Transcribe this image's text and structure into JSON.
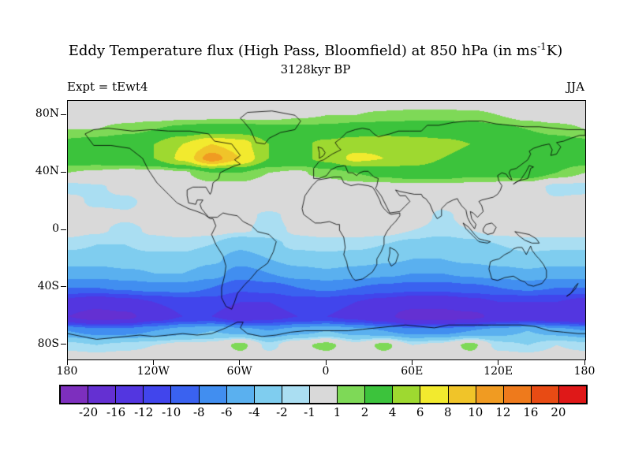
{
  "header": {
    "title_pre": "Eddy Temperature flux (High Pass, Bloomfield) at 850 hPa (in ms",
    "title_sup": "-1",
    "title_post": "K)",
    "subtitle": "3128kyr BP",
    "left_label": "Expt = tEwt4",
    "right_label": "JJA"
  },
  "axes": {
    "lat_ticks": [
      {
        "value": 80,
        "label": "80N"
      },
      {
        "value": 40,
        "label": "40N"
      },
      {
        "value": 0,
        "label": "0"
      },
      {
        "value": -40,
        "label": "40S"
      },
      {
        "value": -80,
        "label": "80S"
      }
    ],
    "lon_ticks": [
      {
        "value": -180,
        "label": "180"
      },
      {
        "value": -120,
        "label": "120W"
      },
      {
        "value": -60,
        "label": "60W"
      },
      {
        "value": 0,
        "label": "0"
      },
      {
        "value": 60,
        "label": "60E"
      },
      {
        "value": 120,
        "label": "120E"
      },
      {
        "value": 180,
        "label": "180"
      }
    ]
  },
  "chart_data": {
    "type": "heatmap",
    "subtype": "filled-contour-world-map",
    "projection": "equirectangular",
    "title": "Eddy Temperature flux (High Pass, Bloomfield) at 850 hPa (in ms-1K)",
    "subtitle": "3128kyr BP",
    "experiment": "tEwt4",
    "season": "JJA",
    "units": "ms-1 K",
    "lat_range": [
      -90,
      90
    ],
    "lon_range": [
      -180,
      180
    ],
    "levels": [
      -20,
      -16,
      -12,
      -10,
      -8,
      -6,
      -4,
      -2,
      -1,
      1,
      2,
      4,
      6,
      8,
      10,
      12,
      16,
      20
    ],
    "colors": [
      "#7d2fbe",
      "#6430d2",
      "#5336e0",
      "#4145ec",
      "#3a62f0",
      "#418ef0",
      "#5ab0ef",
      "#7fcdef",
      "#aadef2",
      "#d9d9d9",
      "#7ed957",
      "#3cc33c",
      "#9ed930",
      "#f2ea2e",
      "#f0c429",
      "#f09b22",
      "#ee7a1c",
      "#e84b14",
      "#df1818"
    ],
    "lats": [
      90,
      80,
      70,
      60,
      50,
      40,
      30,
      20,
      10,
      0,
      -10,
      -20,
      -30,
      -40,
      -50,
      -60,
      -70,
      -80,
      -90
    ],
    "lons": [
      -180,
      -160,
      -140,
      -120,
      -100,
      -80,
      -60,
      -40,
      -20,
      0,
      20,
      40,
      60,
      80,
      100,
      120,
      140,
      160,
      180
    ],
    "values": [
      [
        0,
        0,
        0,
        0,
        0,
        0,
        0,
        0,
        0,
        0,
        0,
        0,
        0,
        0,
        0,
        0,
        0,
        0,
        0
      ],
      [
        0.3,
        0.3,
        0.3,
        0.4,
        0.5,
        0.5,
        0.5,
        0.5,
        0.8,
        1,
        1,
        1.3,
        1.5,
        1.5,
        1.4,
        1,
        0.5,
        0.3,
        0.3
      ],
      [
        1,
        1,
        1.5,
        2,
        2.5,
        3,
        3,
        2.5,
        2.5,
        2.5,
        3,
        3,
        3,
        3,
        3,
        2.5,
        2,
        1.5,
        1
      ],
      [
        2.5,
        3,
        3.5,
        4,
        6,
        8,
        7,
        4,
        3.5,
        4.5,
        5,
        5.5,
        5,
        4.5,
        4,
        4,
        3.5,
        3,
        2.5
      ],
      [
        3,
        3,
        3.5,
        4,
        6.5,
        11,
        8,
        4,
        3.5,
        4.5,
        6.5,
        6,
        5,
        4,
        3.5,
        3.5,
        3,
        3,
        3
      ],
      [
        1,
        0.8,
        0.5,
        0.5,
        0.8,
        2,
        2,
        1,
        0.8,
        1.5,
        2,
        2.5,
        3,
        3,
        2.5,
        2.5,
        3,
        2,
        1
      ],
      [
        -1.5,
        -1.2,
        -0.5,
        0,
        0,
        0.5,
        0.5,
        0,
        0,
        0,
        0.5,
        0.5,
        0.5,
        0.5,
        0.5,
        0.3,
        0,
        -1.5,
        -1.5
      ],
      [
        -0.5,
        -1.3,
        -1.3,
        -0.5,
        0,
        0,
        0,
        0,
        0,
        0,
        0,
        0,
        0,
        -0.5,
        0,
        0,
        -0.5,
        -0.8,
        -0.5
      ],
      [
        -0.3,
        -0.5,
        -0.8,
        -0.5,
        0,
        0,
        -0.5,
        -1.3,
        -0.5,
        0,
        0,
        0,
        0,
        -1.3,
        -0.5,
        0,
        0,
        0,
        -0.3
      ],
      [
        -0.5,
        -0.8,
        -1.3,
        -0.8,
        -0.5,
        -0.5,
        -0.8,
        -1.4,
        -0.8,
        -0.5,
        -0.5,
        -0.5,
        -1,
        -1.4,
        -1,
        -0.5,
        -0.5,
        -0.5,
        -0.5
      ],
      [
        -1.5,
        -2,
        -2,
        -1.5,
        -1.5,
        -2,
        -3.5,
        -2.5,
        -1.5,
        -1.5,
        -1.5,
        -2,
        -2.5,
        -3,
        -2.5,
        -2,
        -1.5,
        -1.5,
        -1.5
      ],
      [
        -3,
        -3,
        -2.5,
        -2.5,
        -2.5,
        -3.5,
        -5,
        -4,
        -3,
        -2.5,
        -3,
        -3.5,
        -4,
        -4,
        -3.5,
        -3,
        -2.5,
        -3,
        -3
      ],
      [
        -5,
        -5,
        -4.5,
        -4,
        -4,
        -5,
        -7,
        -6,
        -5,
        -4.5,
        -5,
        -5.5,
        -6,
        -6,
        -5.5,
        -5,
        -4.5,
        -5,
        -5
      ],
      [
        -8,
        -8,
        -7.5,
        -7,
        -7,
        -8,
        -9.5,
        -9,
        -8,
        -7.5,
        -8,
        -8.5,
        -9,
        -9,
        -8.5,
        -8,
        -7.5,
        -8,
        -8
      ],
      [
        -13,
        -14,
        -13,
        -12,
        -11,
        -11,
        -12,
        -12,
        -11,
        -11,
        -12,
        -13,
        -14,
        -14,
        -13,
        -12,
        -12,
        -12,
        -13
      ],
      [
        -16,
        -18,
        -17,
        -14,
        -12,
        -12,
        -14,
        -13,
        -12,
        -12,
        -13,
        -15,
        -18,
        -18,
        -17,
        -15,
        -14,
        -15,
        -16
      ],
      [
        -6,
        -7,
        -7,
        -6,
        -5,
        -4,
        -5,
        -6,
        -5,
        -4,
        -5,
        -6,
        -7,
        -7,
        -6,
        -5,
        -4,
        -5,
        -6
      ],
      [
        -1.5,
        -2,
        -1.5,
        -1,
        -0.5,
        -0.5,
        1.5,
        -1.5,
        0.5,
        1.5,
        -0.5,
        1.5,
        -1,
        -0.5,
        1.5,
        -1.5,
        -2,
        -1,
        -1.5
      ],
      [
        0,
        0,
        0,
        0,
        0,
        0,
        0,
        0,
        0,
        0,
        0,
        0,
        0,
        0,
        0,
        0,
        0,
        0,
        0
      ]
    ]
  }
}
